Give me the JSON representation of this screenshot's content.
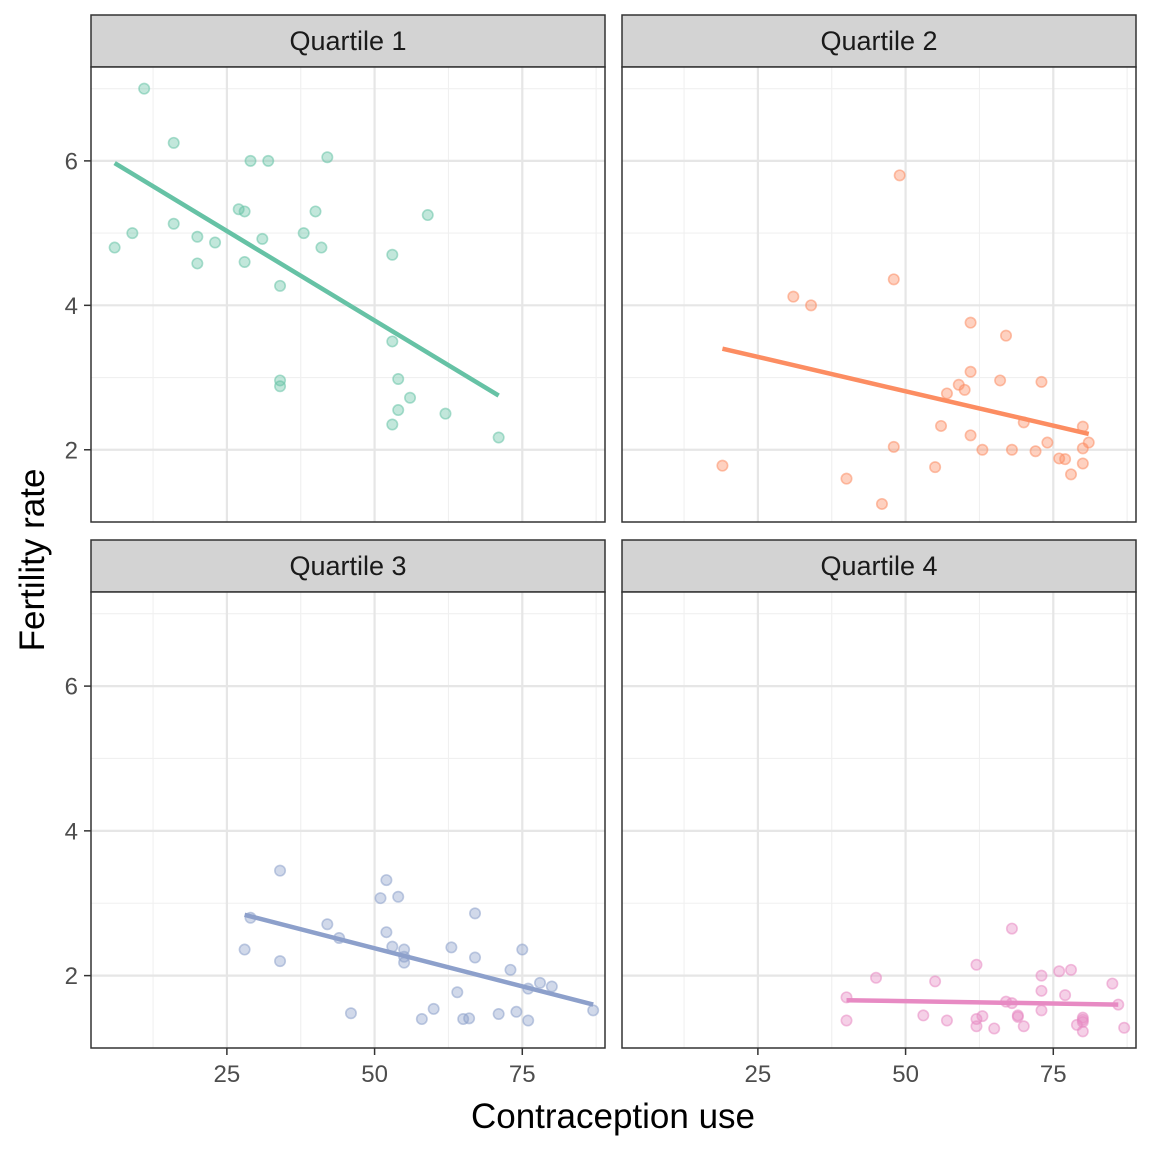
{
  "chart_data": {
    "type": "scatter",
    "facet_layout": "2x2",
    "xlabel": "Contraception use",
    "ylabel": "Fertility rate",
    "xlim": [
      2,
      89
    ],
    "ylim": [
      1.0,
      7.3
    ],
    "x_ticks": [
      25,
      50,
      75
    ],
    "y_ticks": [
      2,
      4,
      6
    ],
    "grid": true,
    "panels": [
      {
        "title": "Quartile 1",
        "color": "#66c2a5",
        "points": [
          [
            6,
            4.8
          ],
          [
            9,
            5.0
          ],
          [
            11,
            7.0
          ],
          [
            16,
            6.25
          ],
          [
            16,
            5.13
          ],
          [
            20,
            4.95
          ],
          [
            20,
            4.58
          ],
          [
            23,
            4.87
          ],
          [
            27,
            5.33
          ],
          [
            28,
            5.3
          ],
          [
            28,
            4.6
          ],
          [
            29,
            6.0
          ],
          [
            31,
            4.92
          ],
          [
            32,
            6.0
          ],
          [
            34,
            4.27
          ],
          [
            34,
            2.96
          ],
          [
            34,
            2.88
          ],
          [
            38,
            5.0
          ],
          [
            40,
            5.3
          ],
          [
            41,
            4.8
          ],
          [
            42,
            6.05
          ],
          [
            53,
            4.7
          ],
          [
            53,
            3.5
          ],
          [
            53,
            2.35
          ],
          [
            54,
            2.98
          ],
          [
            54,
            2.55
          ],
          [
            56,
            2.72
          ],
          [
            59,
            5.25
          ],
          [
            62,
            2.5
          ],
          [
            71,
            2.17
          ]
        ],
        "trend": [
          [
            6,
            5.97
          ],
          [
            71,
            2.75
          ]
        ]
      },
      {
        "title": "Quartile 2",
        "color": "#fc8d62",
        "points": [
          [
            19,
            1.78
          ],
          [
            31,
            4.12
          ],
          [
            34,
            4.0
          ],
          [
            40,
            1.6
          ],
          [
            46,
            1.25
          ],
          [
            48,
            4.36
          ],
          [
            48,
            2.04
          ],
          [
            49,
            5.8
          ],
          [
            55,
            1.76
          ],
          [
            56,
            2.33
          ],
          [
            57,
            2.78
          ],
          [
            59,
            2.9
          ],
          [
            60,
            2.83
          ],
          [
            61,
            3.76
          ],
          [
            61,
            3.08
          ],
          [
            61,
            2.2
          ],
          [
            63,
            2.0
          ],
          [
            66,
            2.96
          ],
          [
            67,
            3.58
          ],
          [
            68,
            2.0
          ],
          [
            70,
            2.38
          ],
          [
            72,
            1.98
          ],
          [
            73,
            2.94
          ],
          [
            74,
            2.1
          ],
          [
            76,
            1.88
          ],
          [
            77,
            1.87
          ],
          [
            78,
            1.66
          ],
          [
            80,
            2.32
          ],
          [
            80,
            2.02
          ],
          [
            80,
            1.81
          ],
          [
            81,
            2.1
          ]
        ],
        "trend": [
          [
            19,
            3.4
          ],
          [
            81,
            2.22
          ]
        ]
      },
      {
        "title": "Quartile 3",
        "color": "#8da0cb",
        "points": [
          [
            28,
            2.36
          ],
          [
            29,
            2.8
          ],
          [
            34,
            3.45
          ],
          [
            34,
            2.2
          ],
          [
            42,
            2.71
          ],
          [
            44,
            2.52
          ],
          [
            46,
            1.48
          ],
          [
            51,
            3.07
          ],
          [
            52,
            3.32
          ],
          [
            52,
            2.6
          ],
          [
            53,
            2.4
          ],
          [
            54,
            3.09
          ],
          [
            55,
            2.36
          ],
          [
            55,
            2.26
          ],
          [
            55,
            2.18
          ],
          [
            58,
            1.4
          ],
          [
            60,
            1.54
          ],
          [
            63,
            2.39
          ],
          [
            64,
            1.77
          ],
          [
            65,
            1.4
          ],
          [
            66,
            1.41
          ],
          [
            67,
            2.86
          ],
          [
            67,
            2.25
          ],
          [
            71,
            1.47
          ],
          [
            73,
            2.08
          ],
          [
            74,
            1.5
          ],
          [
            75,
            2.36
          ],
          [
            76,
            1.82
          ],
          [
            76,
            1.38
          ],
          [
            78,
            1.9
          ],
          [
            80,
            1.85
          ],
          [
            87,
            1.52
          ]
        ],
        "trend": [
          [
            28,
            2.84
          ],
          [
            87,
            1.6
          ]
        ]
      },
      {
        "title": "Quartile 4",
        "color": "#e78ac3",
        "points": [
          [
            40,
            1.7
          ],
          [
            40,
            1.38
          ],
          [
            45,
            1.97
          ],
          [
            53,
            1.45
          ],
          [
            55,
            1.92
          ],
          [
            57,
            1.38
          ],
          [
            62,
            2.15
          ],
          [
            62,
            1.4
          ],
          [
            62,
            1.3
          ],
          [
            63,
            1.44
          ],
          [
            65,
            1.27
          ],
          [
            67,
            1.64
          ],
          [
            68,
            2.65
          ],
          [
            68,
            1.62
          ],
          [
            69,
            1.45
          ],
          [
            69,
            1.43
          ],
          [
            70,
            1.3
          ],
          [
            73,
            2.0
          ],
          [
            73,
            1.79
          ],
          [
            73,
            1.52
          ],
          [
            76,
            2.06
          ],
          [
            77,
            1.73
          ],
          [
            78,
            2.08
          ],
          [
            79,
            1.32
          ],
          [
            80,
            1.39
          ],
          [
            80,
            1.36
          ],
          [
            80,
            1.23
          ],
          [
            80,
            1.42
          ],
          [
            85,
            1.89
          ],
          [
            86,
            1.6
          ],
          [
            87,
            1.28
          ]
        ],
        "trend": [
          [
            40,
            1.66
          ],
          [
            86,
            1.6
          ]
        ]
      }
    ]
  }
}
